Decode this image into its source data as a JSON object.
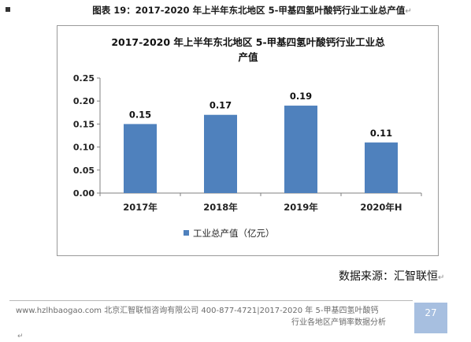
{
  "caption": "图表 19：2017-2020 年上半年东北地区 5-甲基四氢叶酸钙行业工业总产值",
  "source": "数据来源：汇智联恒",
  "footer": {
    "line1": "www.hzlhbaogao.com 北京汇智联恒咨询有限公司  400-877-4721|2017-2020 年 5-甲基四氢叶酸钙",
    "line2": "行业各地区产销率数据分析",
    "page_number": "27"
  },
  "colors": {
    "bar": "#4f81bd",
    "page_box": "#a7bfe0"
  },
  "chart_data": {
    "type": "bar",
    "title_line1": "2017-2020 年上半年东北地区 5-甲基四氢叶酸钙行业工业总",
    "title_line2": "产值",
    "categories": [
      "2017年",
      "2018年",
      "2019年",
      "2020年H"
    ],
    "series": [
      {
        "name": "工业总产值（亿元）",
        "values": [
          0.15,
          0.17,
          0.19,
          0.11
        ]
      }
    ],
    "data_labels": [
      "0.15",
      "0.17",
      "0.19",
      "0.11"
    ],
    "y_ticks": [
      "0.00",
      "0.05",
      "0.10",
      "0.15",
      "0.20",
      "0.25"
    ],
    "ylim": [
      0,
      0.25
    ],
    "grid": false,
    "legend_position": "bottom"
  }
}
